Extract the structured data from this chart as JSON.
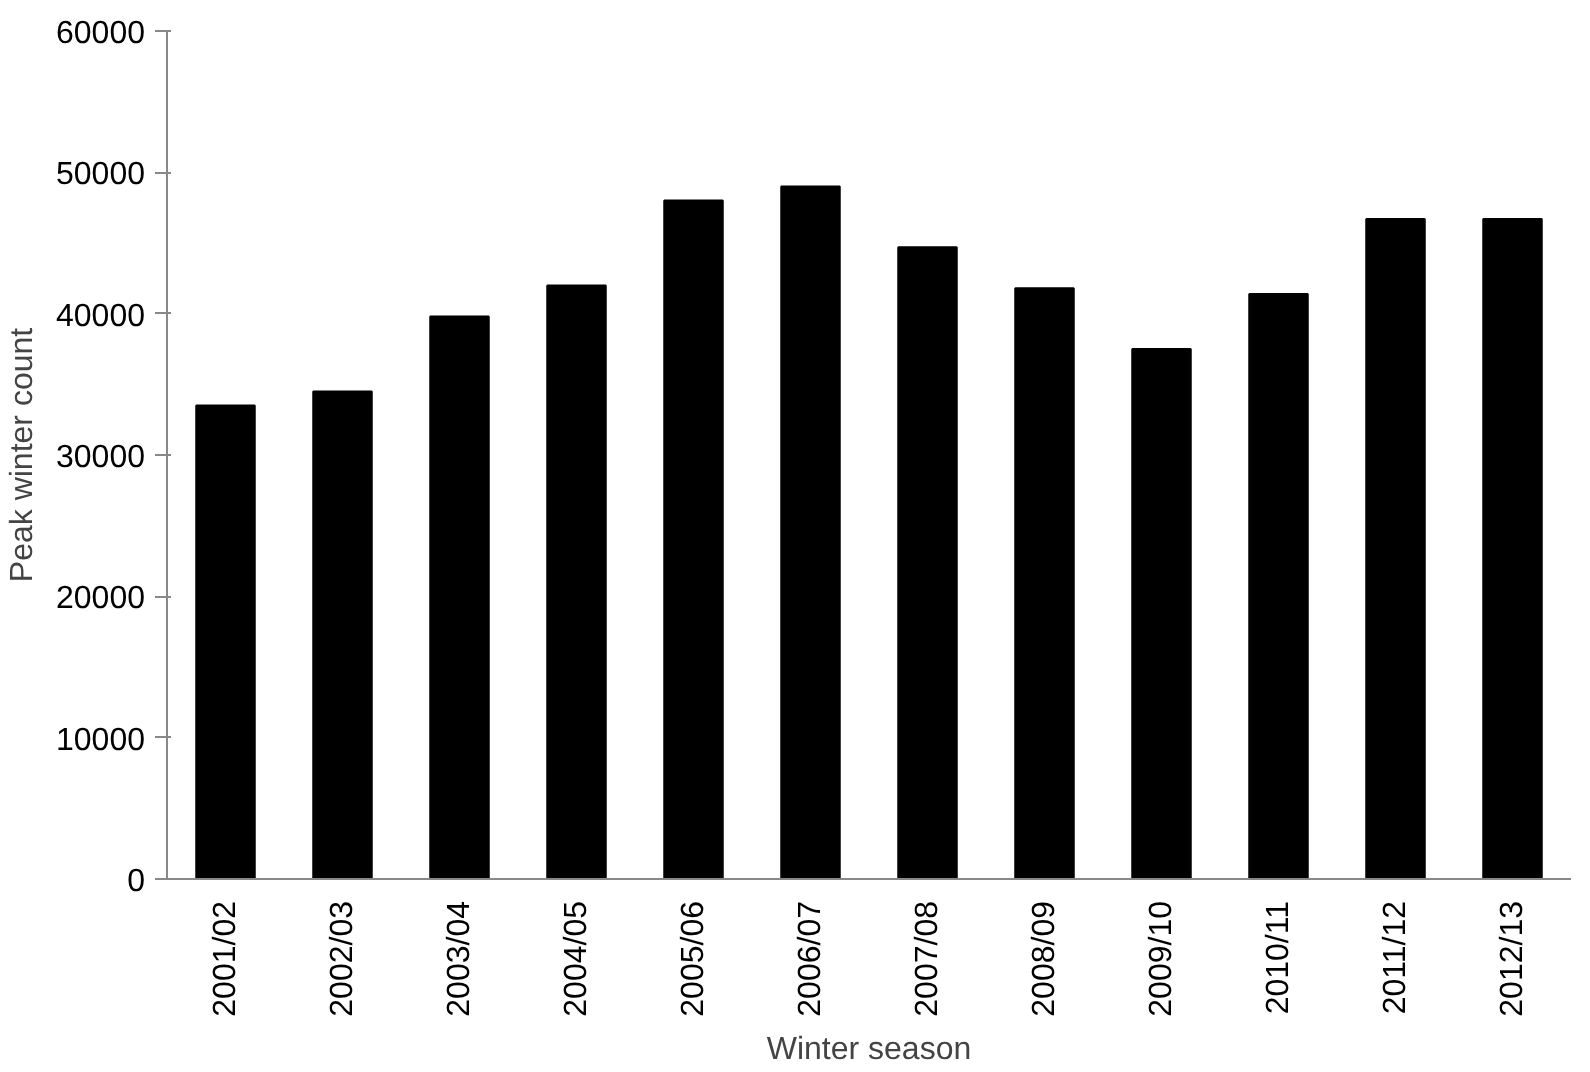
{
  "chart_data": {
    "type": "bar",
    "xlabel": "Winter season",
    "ylabel": "Peak winter count",
    "categories": [
      "2001/02",
      "2002/03",
      "2003/04",
      "2004/05",
      "2005/06",
      "2006/07",
      "2007/08",
      "2008/09",
      "2009/10",
      "2010/11",
      "2011/12",
      "2012/13"
    ],
    "values": [
      33500,
      34500,
      39800,
      42000,
      48000,
      49000,
      44700,
      41800,
      37500,
      41400,
      46700,
      46700
    ],
    "color": "#000000",
    "ylim": [
      0,
      60000
    ],
    "yticks": [
      0,
      10000,
      20000,
      30000,
      40000,
      50000,
      60000
    ],
    "grid": false
  }
}
